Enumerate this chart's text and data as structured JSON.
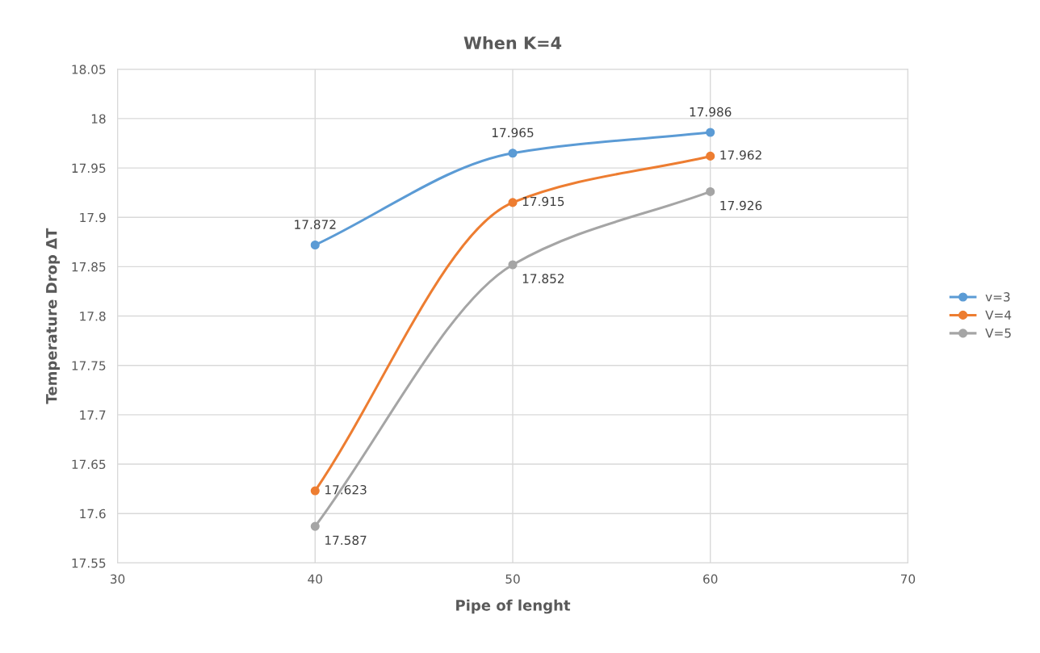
{
  "chart_data": {
    "type": "line",
    "title": "When K=4",
    "xlabel": "Pipe of lenght",
    "ylabel": "Temperature Drop ΔT",
    "x": [
      40,
      50,
      60
    ],
    "series": [
      {
        "name": "v=3",
        "color": "#5b9bd5",
        "values": [
          17.872,
          17.965,
          17.986
        ]
      },
      {
        "name": "V=4",
        "color": "#ed7d31",
        "values": [
          17.623,
          17.915,
          17.962
        ]
      },
      {
        "name": "V=5",
        "color": "#a5a5a5",
        "values": [
          17.587,
          17.852,
          17.926
        ]
      }
    ],
    "xlim": [
      30,
      70
    ],
    "xticks": [
      30,
      40,
      50,
      60,
      70
    ],
    "ylim": [
      17.55,
      18.05
    ],
    "yticks": [
      17.55,
      17.6,
      17.65,
      17.7,
      17.75,
      17.8,
      17.85,
      17.9,
      17.95,
      {
        "value": 18,
        "label": "18"
      },
      18.05
    ],
    "grid": true,
    "legend": "right",
    "marker": "circle",
    "line_style": "solid",
    "data_labels": true
  }
}
